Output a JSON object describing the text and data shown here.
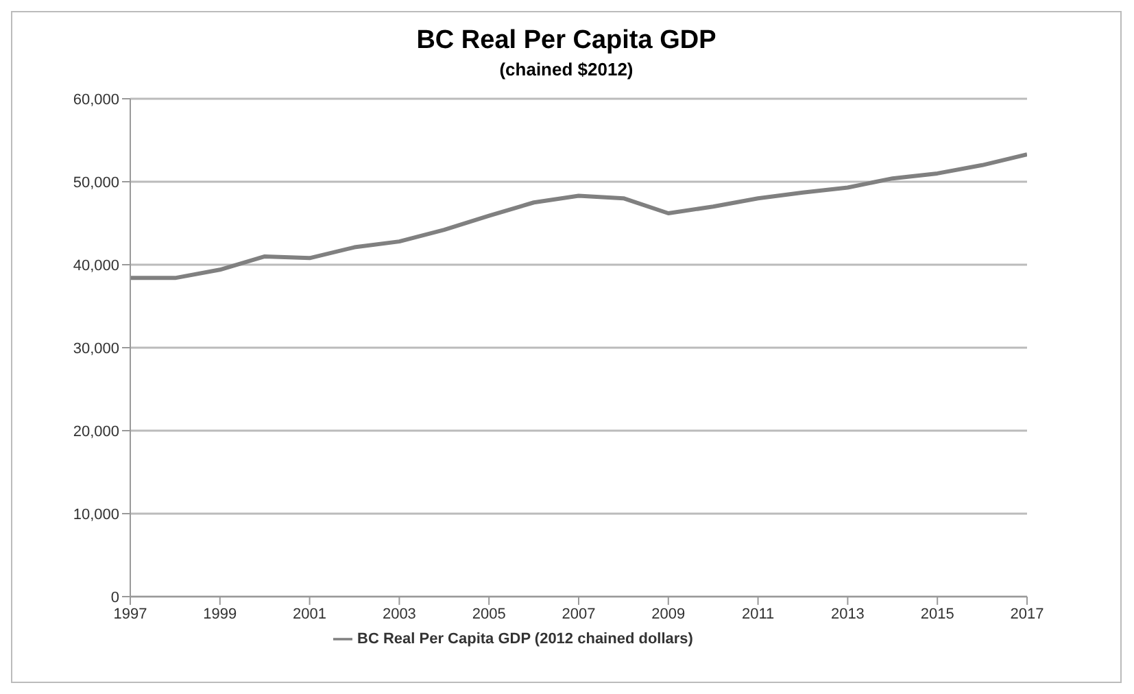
{
  "chart_data": {
    "type": "line",
    "title": "BC Real Per Capita GDP",
    "subtitle": "(chained $2012)",
    "x": [
      1997,
      1998,
      1999,
      2000,
      2001,
      2002,
      2003,
      2004,
      2005,
      2006,
      2007,
      2008,
      2009,
      2010,
      2011,
      2012,
      2013,
      2014,
      2015,
      2016,
      2017
    ],
    "series": [
      {
        "name": "BC Real Per Capita GDP (2012 chained dollars)",
        "color": "#808080",
        "values": [
          38400,
          38400,
          39400,
          41000,
          40800,
          42100,
          42800,
          44200,
          45900,
          47500,
          48300,
          48000,
          46200,
          47000,
          48000,
          48700,
          49300,
          50400,
          51000,
          52000,
          53300
        ]
      }
    ],
    "xlim": [
      1997,
      2017
    ],
    "xticks": [
      1997,
      1999,
      2001,
      2003,
      2005,
      2007,
      2009,
      2011,
      2013,
      2015,
      2017
    ],
    "ylim": [
      0,
      60000
    ],
    "yticks": [
      0,
      {
        "value": 10000,
        "label": "10,000"
      },
      {
        "value": 20000,
        "label": "20,000"
      },
      {
        "value": 30000,
        "label": "30,000"
      },
      {
        "value": 40000,
        "label": "40,000"
      },
      {
        "value": 50000,
        "label": "50,000"
      },
      {
        "value": 60000,
        "label": "60,000"
      }
    ],
    "grid": "y",
    "legend": "bottom",
    "marker": "none",
    "line_style": "solid"
  }
}
